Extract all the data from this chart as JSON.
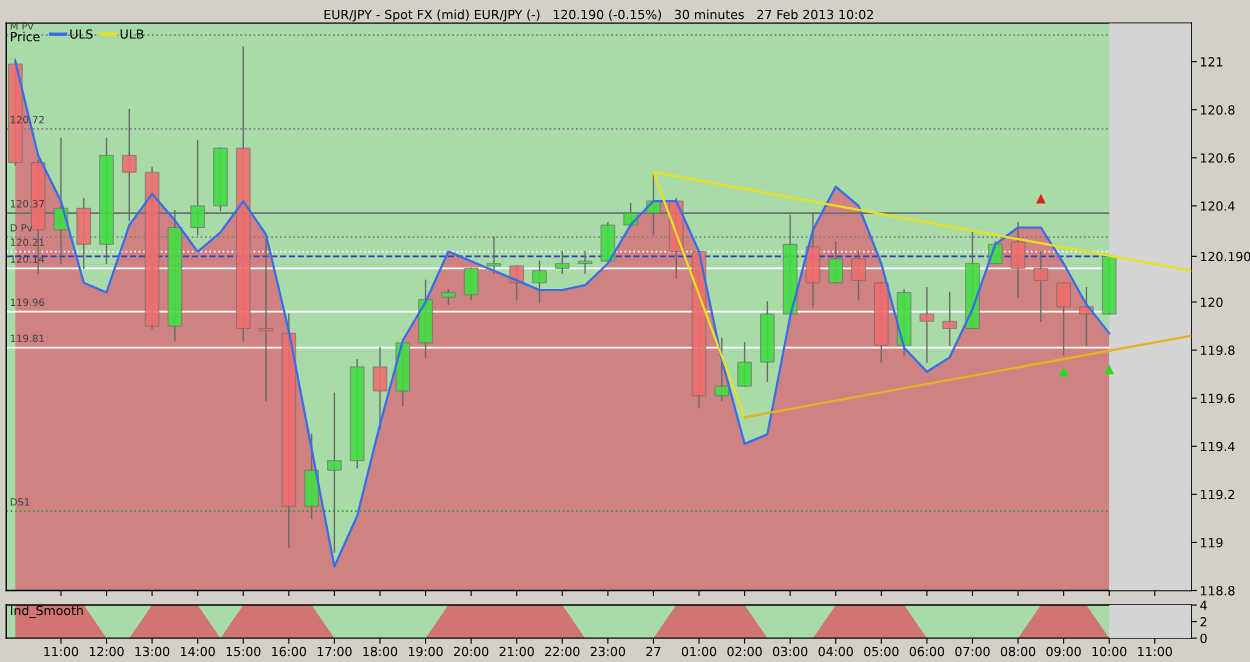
{
  "chart_data": [
    {
      "type": "candlestick",
      "title": "EUR/JPY - Spot FX (mid) EUR/JPY (-)   120.190 (-0.15%)   30 minutes   27 Feb 2013 10:02",
      "annotations": [
        "Price"
      ],
      "x": [
        "2013-02-26T10:00",
        "2013-02-26T10:30",
        "2013-02-26T11:00",
        "2013-02-26T11:30",
        "2013-02-26T12:00",
        "2013-02-26T12:30",
        "2013-02-26T13:00",
        "2013-02-26T13:30",
        "2013-02-26T14:00",
        "2013-02-26T14:30",
        "2013-02-26T15:00",
        "2013-02-26T15:30",
        "2013-02-26T16:00",
        "2013-02-26T16:30",
        "2013-02-26T17:00",
        "2013-02-26T17:30",
        "2013-02-26T18:00",
        "2013-02-26T18:30",
        "2013-02-26T19:00",
        "2013-02-26T19:30",
        "2013-02-26T20:00",
        "2013-02-26T20:30",
        "2013-02-26T21:00",
        "2013-02-26T21:30",
        "2013-02-26T22:00",
        "2013-02-26T22:30",
        "2013-02-26T23:00",
        "2013-02-26T23:30",
        "2013-02-27T00:00",
        "2013-02-27T00:30",
        "2013-02-27T01:00",
        "2013-02-27T01:30",
        "2013-02-27T02:00",
        "2013-02-27T02:30",
        "2013-02-27T03:00",
        "2013-02-27T03:30",
        "2013-02-27T04:00",
        "2013-02-27T04:30",
        "2013-02-27T05:00",
        "2013-02-27T05:30",
        "2013-02-27T06:00",
        "2013-02-27T06:30",
        "2013-02-27T07:00",
        "2013-02-27T07:30",
        "2013-02-27T08:00",
        "2013-02-27T08:30",
        "2013-02-27T09:00",
        "2013-02-27T09:30",
        "2013-02-27T10:00"
      ],
      "ohlc": [
        [
          120.99,
          121.01,
          120.57,
          120.58
        ],
        [
          120.58,
          120.59,
          120.12,
          120.3
        ],
        [
          120.3,
          120.68,
          120.16,
          120.39
        ],
        [
          120.39,
          120.43,
          120.14,
          120.24
        ],
        [
          120.24,
          120.68,
          120.16,
          120.61
        ],
        [
          120.61,
          120.8,
          120.34,
          120.54
        ],
        [
          120.54,
          120.56,
          119.89,
          119.9
        ],
        [
          119.9,
          120.38,
          119.84,
          120.31
        ],
        [
          120.31,
          120.67,
          120.28,
          120.4
        ],
        [
          120.4,
          120.64,
          120.38,
          120.64
        ],
        [
          120.64,
          121.06,
          119.84,
          119.89
        ],
        [
          119.89,
          120.26,
          119.59,
          119.88
        ],
        [
          119.87,
          119.95,
          118.98,
          119.15
        ],
        [
          119.15,
          119.45,
          119.1,
          119.3
        ],
        [
          119.3,
          119.62,
          118.96,
          119.34
        ],
        [
          119.34,
          119.76,
          119.31,
          119.73
        ],
        [
          119.73,
          119.81,
          119.47,
          119.63
        ],
        [
          119.63,
          119.84,
          119.57,
          119.83
        ],
        [
          119.83,
          120.09,
          119.77,
          120.01
        ],
        [
          120.02,
          120.05,
          119.99,
          120.04
        ],
        [
          120.03,
          120.14,
          120.01,
          120.14
        ],
        [
          120.15,
          120.27,
          120.12,
          120.16
        ],
        [
          120.15,
          120.15,
          120.01,
          120.08
        ],
        [
          120.08,
          120.17,
          120.0,
          120.13
        ],
        [
          120.14,
          120.21,
          120.12,
          120.16
        ],
        [
          120.16,
          120.21,
          120.12,
          120.17
        ],
        [
          120.17,
          120.33,
          120.17,
          120.32
        ],
        [
          120.32,
          120.41,
          120.32,
          120.37
        ],
        [
          120.37,
          120.54,
          120.28,
          120.42
        ],
        [
          120.42,
          120.43,
          120.1,
          120.21
        ],
        [
          120.21,
          120.21,
          119.56,
          119.61
        ],
        [
          119.61,
          119.85,
          119.59,
          119.65
        ],
        [
          119.65,
          119.83,
          119.65,
          119.75
        ],
        [
          119.75,
          120.0,
          119.67,
          119.95
        ],
        [
          119.95,
          120.36,
          119.95,
          120.24
        ],
        [
          120.23,
          120.37,
          119.98,
          120.08
        ],
        [
          120.08,
          120.25,
          120.08,
          120.18
        ],
        [
          120.18,
          120.21,
          120.01,
          120.09
        ],
        [
          120.08,
          120.08,
          119.75,
          119.82
        ],
        [
          119.82,
          120.05,
          119.78,
          120.04
        ],
        [
          119.95,
          120.06,
          119.75,
          119.92
        ],
        [
          119.92,
          120.04,
          119.82,
          119.89
        ],
        [
          119.89,
          120.29,
          119.89,
          120.16
        ],
        [
          120.16,
          120.25,
          120.16,
          120.24
        ],
        [
          120.25,
          120.33,
          120.02,
          120.14
        ],
        [
          120.14,
          120.21,
          119.92,
          120.09
        ],
        [
          120.08,
          120.08,
          119.78,
          119.98
        ],
        [
          119.98,
          120.06,
          119.82,
          119.95
        ],
        [
          119.95,
          120.19,
          119.95,
          120.19
        ]
      ],
      "colors": [
        "#ee6e6e",
        "#ee6e6e",
        "#44dd44",
        "#ee6e6e",
        "#44dd44",
        "#ee6e6e",
        "#ee6e6e",
        "#44dd44",
        "#44dd44",
        "#44dd44",
        "#ee6e6e",
        "#ee6e6e",
        "#ee6e6e",
        "#44dd44",
        "#44dd44",
        "#44dd44",
        "#ee6e6e",
        "#44dd44",
        "#44dd44",
        "#44dd44",
        "#44dd44",
        "#44dd44",
        "#ee6e6e",
        "#44dd44",
        "#44dd44",
        "#44dd44",
        "#44dd44",
        "#44dd44",
        "#44dd44",
        "#ee6e6e",
        "#ee6e6e",
        "#44dd44",
        "#44dd44",
        "#44dd44",
        "#44dd44",
        "#ee6e6e",
        "#44dd44",
        "#ee6e6e",
        "#ee6e6e",
        "#44dd44",
        "#ee6e6e",
        "#ee6e6e",
        "#44dd44",
        "#44dd44",
        "#ee6e6e",
        "#ee6e6e",
        "#ee6e6e",
        "#ee6e6e",
        "#44dd44"
      ],
      "series": [
        {
          "type": "area",
          "color": "#d08282",
          "values": [
            121.0,
            120.61,
            120.42,
            120.08,
            120.04,
            120.32,
            120.45,
            120.34,
            120.21,
            120.29,
            120.42,
            120.28,
            119.88,
            119.39,
            118.9,
            119.11,
            119.49,
            119.84,
            120.0,
            120.21,
            120.17,
            120.13,
            120.09,
            120.05,
            120.05,
            120.07,
            120.16,
            120.32,
            120.42,
            120.42,
            120.21,
            119.76,
            119.41,
            119.45,
            119.94,
            120.3,
            120.48,
            120.4,
            120.16,
            119.81,
            119.71,
            119.77,
            119.97,
            120.24,
            120.31,
            120.31,
            120.16,
            119.99,
            119.87
          ]
        },
        {
          "type": "line",
          "name": "ULS",
          "color": "#3a6ee8",
          "values": [
            121.0,
            120.61,
            120.42,
            120.08,
            120.04,
            120.32,
            120.45,
            120.34,
            120.21,
            120.29,
            120.42,
            120.28,
            119.88,
            119.39,
            118.9,
            119.11,
            119.49,
            119.84,
            120.0,
            120.21,
            120.17,
            120.13,
            120.09,
            120.05,
            120.05,
            120.07,
            120.16,
            120.32,
            120.42,
            120.42,
            120.21,
            119.76,
            119.41,
            119.45,
            119.94,
            120.3,
            120.48,
            120.4,
            120.16,
            119.81,
            119.71,
            119.77,
            119.97,
            120.24,
            120.31,
            120.31,
            120.16,
            119.99,
            119.87
          ]
        },
        {
          "type": "line",
          "name": "ULB",
          "color": "#e8e020",
          "x": [
            "2013-02-27T02:00",
            "2013-02-27T00:00",
            "2013-02-27T11:48"
          ],
          "values": [
            119.52,
            120.54,
            120.13
          ]
        },
        {
          "type": "line",
          "color": "#e8b020",
          "x": [
            "2013-02-27T02:00",
            "2013-02-27T11:48"
          ],
          "values": [
            119.52,
            119.86
          ]
        },
        {
          "type": "scatter",
          "color": "#dd2020",
          "marker": "triangle",
          "x": [
            "2013-02-27T08:30"
          ],
          "values": [
            120.43
          ]
        },
        {
          "type": "scatter",
          "color": "#20dd20",
          "marker": "triangle",
          "x": [
            "2013-02-27T09:00",
            "2013-02-27T10:00"
          ],
          "values": [
            119.71,
            119.72
          ]
        }
      ],
      "ref_lines": [
        {
          "axis": "y",
          "value": 121.11,
          "label": "M Pv",
          "color": "#808080",
          "line_style": "dotted"
        },
        {
          "axis": "y",
          "value": 120.72,
          "label": "120.72",
          "color": "#808080",
          "line_style": "dotted"
        },
        {
          "axis": "y",
          "value": 120.37,
          "label": "120.37",
          "color": "#707070",
          "line_style": "solid"
        },
        {
          "axis": "y",
          "value": 120.27,
          "label": "D Pv",
          "color": "#808080",
          "line_style": "dotted"
        },
        {
          "axis": "y",
          "value": 120.21,
          "label": "120.21",
          "color": "#ffffff",
          "line_style": "dotted"
        },
        {
          "axis": "y",
          "value": 120.19,
          "label": null,
          "color": "#3040c0",
          "line_style": "dashed"
        },
        {
          "axis": "y",
          "value": 120.14,
          "label": "120.14",
          "color": "#ffffff",
          "line_style": "solid"
        },
        {
          "axis": "y",
          "value": 119.96,
          "label": "119.96",
          "color": "#ffffff",
          "line_style": "solid"
        },
        {
          "axis": "y",
          "value": 119.81,
          "label": "119.81",
          "color": "#ffffff",
          "line_style": "solid"
        },
        {
          "axis": "y",
          "value": 119.13,
          "label": "DS1",
          "color": "#30a030",
          "line_style": "dotted"
        }
      ],
      "bands": [
        {
          "axis": "y",
          "from": 118.8,
          "to": 121.16,
          "color": "#a9dba9"
        },
        {
          "axis": "x",
          "from": "2013-02-27T10:00",
          "to": "2013-02-27T11:48",
          "color": "#d4d4d4"
        }
      ],
      "xlim": [
        "2013-02-26T09:48",
        "2013-02-27T11:48"
      ],
      "ylim": [
        118.8,
        121.16
      ],
      "xticks": [
        {
          "value": "2013-02-26T11:00",
          "label": null
        },
        {
          "value": "2013-02-26T12:00",
          "label": null
        },
        {
          "value": "2013-02-26T13:00",
          "label": null
        },
        {
          "value": "2013-02-26T14:00",
          "label": null
        },
        {
          "value": "2013-02-26T15:00",
          "label": null
        },
        {
          "value": "2013-02-26T16:00",
          "label": null
        },
        {
          "value": "2013-02-26T17:00",
          "label": null
        },
        {
          "value": "2013-02-26T18:00",
          "label": null
        },
        {
          "value": "2013-02-26T19:00",
          "label": null
        },
        {
          "value": "2013-02-26T20:00",
          "label": null
        },
        {
          "value": "2013-02-26T21:00",
          "label": null
        },
        {
          "value": "2013-02-26T22:00",
          "label": null
        },
        {
          "value": "2013-02-26T23:00",
          "label": null
        },
        {
          "value": "2013-02-27T00:00",
          "label": null
        },
        {
          "value": "2013-02-27T01:00",
          "label": null
        },
        {
          "value": "2013-02-27T02:00",
          "label": null
        },
        {
          "value": "2013-02-27T03:00",
          "label": null
        },
        {
          "value": "2013-02-27T04:00",
          "label": null
        },
        {
          "value": "2013-02-27T05:00",
          "label": null
        },
        {
          "value": "2013-02-27T06:00",
          "label": null
        },
        {
          "value": "2013-02-27T07:00",
          "label": null
        },
        {
          "value": "2013-02-27T08:00",
          "label": null
        },
        {
          "value": "2013-02-27T09:00",
          "label": null
        },
        {
          "value": "2013-02-27T10:00",
          "label": null
        },
        {
          "value": "2013-02-27T11:00",
          "label": null
        }
      ],
      "yticks": [
        121,
        120.8,
        120.6,
        120.4,
        {
          "value": 120.19,
          "label": "120.190"
        },
        120,
        119.8,
        119.6,
        119.4,
        119.2,
        119,
        118.8
      ],
      "tick_labels": "y",
      "legend": "top left",
      "grid": false
    },
    {
      "type": "area",
      "annotations": [
        "Ind_Smooth"
      ],
      "x": [
        "2013-02-26T10:00",
        "2013-02-26T10:30",
        "2013-02-26T11:00",
        "2013-02-26T11:30",
        "2013-02-26T12:00",
        "2013-02-26T12:30",
        "2013-02-26T13:00",
        "2013-02-26T13:30",
        "2013-02-26T14:00",
        "2013-02-26T14:30",
        "2013-02-26T15:00",
        "2013-02-26T15:30",
        "2013-02-26T16:00",
        "2013-02-26T16:30",
        "2013-02-26T17:00",
        "2013-02-26T17:30",
        "2013-02-26T18:00",
        "2013-02-26T18:30",
        "2013-02-26T19:00",
        "2013-02-26T19:30",
        "2013-02-26T20:00",
        "2013-02-26T20:30",
        "2013-02-26T21:00",
        "2013-02-26T21:30",
        "2013-02-26T22:00",
        "2013-02-26T22:30",
        "2013-02-26T23:00",
        "2013-02-26T23:30",
        "2013-02-27T00:00",
        "2013-02-27T00:30",
        "2013-02-27T01:00",
        "2013-02-27T01:30",
        "2013-02-27T02:00",
        "2013-02-27T02:30",
        "2013-02-27T03:00",
        "2013-02-27T03:30",
        "2013-02-27T04:00",
        "2013-02-27T04:30",
        "2013-02-27T05:00",
        "2013-02-27T05:30",
        "2013-02-27T06:00",
        "2013-02-27T06:30",
        "2013-02-27T07:00",
        "2013-02-27T07:30",
        "2013-02-27T08:00",
        "2013-02-27T08:30",
        "2013-02-27T09:00",
        "2013-02-27T09:30",
        "2013-02-27T10:00"
      ],
      "series": [
        {
          "color": "#d07474",
          "values": [
            4,
            4,
            4,
            4,
            0,
            0,
            4,
            4,
            4,
            0,
            4,
            4,
            4,
            4,
            0,
            0,
            0,
            0,
            0,
            4,
            4,
            4,
            4,
            4,
            4,
            0,
            0,
            0,
            0,
            4,
            4,
            4,
            4,
            0,
            0,
            0,
            4,
            4,
            4,
            4,
            0,
            0,
            0,
            0,
            0,
            4,
            4,
            4,
            0
          ]
        }
      ],
      "bands": [
        {
          "axis": "y",
          "from": 0,
          "to": 4,
          "color": "#a9dba9"
        },
        {
          "axis": "x",
          "from": "2013-02-27T10:00",
          "to": "2013-02-27T11:48",
          "color": "#d4d4d4"
        }
      ],
      "xlim": [
        "2013-02-26T09:48",
        "2013-02-27T11:48"
      ],
      "ylim": [
        0,
        4
      ],
      "xticks": [
        {
          "value": "2013-02-26T11:00",
          "label": "11:00"
        },
        {
          "value": "2013-02-26T12:00",
          "label": "12:00"
        },
        {
          "value": "2013-02-26T13:00",
          "label": "13:00"
        },
        {
          "value": "2013-02-26T14:00",
          "label": "14:00"
        },
        {
          "value": "2013-02-26T15:00",
          "label": "15:00"
        },
        {
          "value": "2013-02-26T16:00",
          "label": "16:00"
        },
        {
          "value": "2013-02-26T17:00",
          "label": "17:00"
        },
        {
          "value": "2013-02-26T18:00",
          "label": "18:00"
        },
        {
          "value": "2013-02-26T19:00",
          "label": "19:00"
        },
        {
          "value": "2013-02-26T20:00",
          "label": "20:00"
        },
        {
          "value": "2013-02-26T21:00",
          "label": "21:00"
        },
        {
          "value": "2013-02-26T22:00",
          "label": "22:00"
        },
        {
          "value": "2013-02-26T23:00",
          "label": "23:00"
        },
        {
          "value": "2013-02-27T00:00",
          "label": "27"
        },
        {
          "value": "2013-02-27T01:00",
          "label": "01:00"
        },
        {
          "value": "2013-02-27T02:00",
          "label": "02:00"
        },
        {
          "value": "2013-02-27T03:00",
          "label": "03:00"
        },
        {
          "value": "2013-02-27T04:00",
          "label": "04:00"
        },
        {
          "value": "2013-02-27T05:00",
          "label": "05:00"
        },
        {
          "value": "2013-02-27T06:00",
          "label": "06:00"
        },
        {
          "value": "2013-02-27T07:00",
          "label": "07:00"
        },
        {
          "value": "2013-02-27T08:00",
          "label": "08:00"
        },
        {
          "value": "2013-02-27T09:00",
          "label": "09:00"
        },
        {
          "value": "2013-02-27T10:00",
          "label": "10:00"
        },
        {
          "value": "2013-02-27T11:00",
          "label": "11:00"
        }
      ],
      "yticks": [
        0,
        2,
        4
      ],
      "grid": false
    }
  ]
}
